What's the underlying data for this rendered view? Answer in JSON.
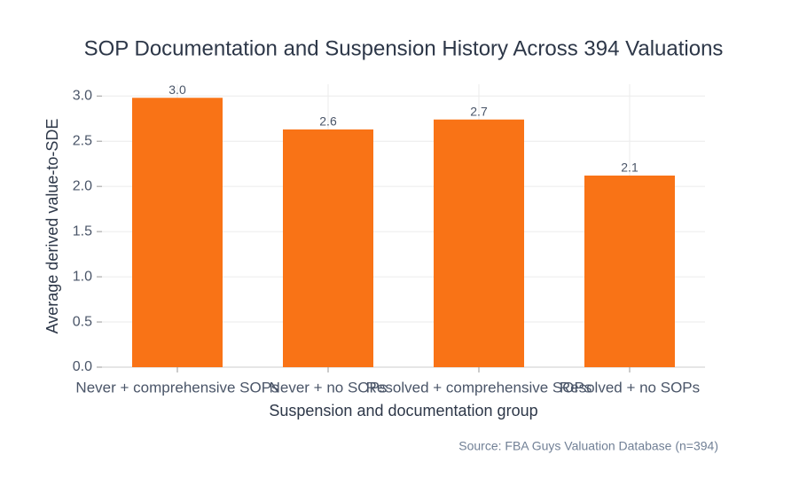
{
  "chart_data": {
    "type": "bar",
    "title": "SOP Documentation and Suspension History Across 394 Valuations",
    "x_label": "Suspension and documentation group",
    "y_label": "Average derived value-to-SDE",
    "annotation": "Source: FBA Guys Valuation Database (n=394)",
    "categories": [
      "Never + comprehensive SOPs",
      "Never + no SOPs",
      "Resolved + comprehensive SOPs",
      "Resolved + no SOPs"
    ],
    "values": [
      2.98,
      2.63,
      2.74,
      2.12
    ],
    "value_labels": [
      "3.0",
      "2.6",
      "2.7",
      "2.1"
    ],
    "color": "#f97316",
    "ylim": [
      0,
      3.13
    ],
    "yticks": [
      {
        "value": 0,
        "label": "0.0"
      },
      0.5,
      {
        "value": 1,
        "label": "1.0"
      },
      1.5,
      {
        "value": 2,
        "label": "2.0"
      },
      2.5,
      {
        "value": 3,
        "label": "3.0"
      }
    ],
    "grid": true
  }
}
